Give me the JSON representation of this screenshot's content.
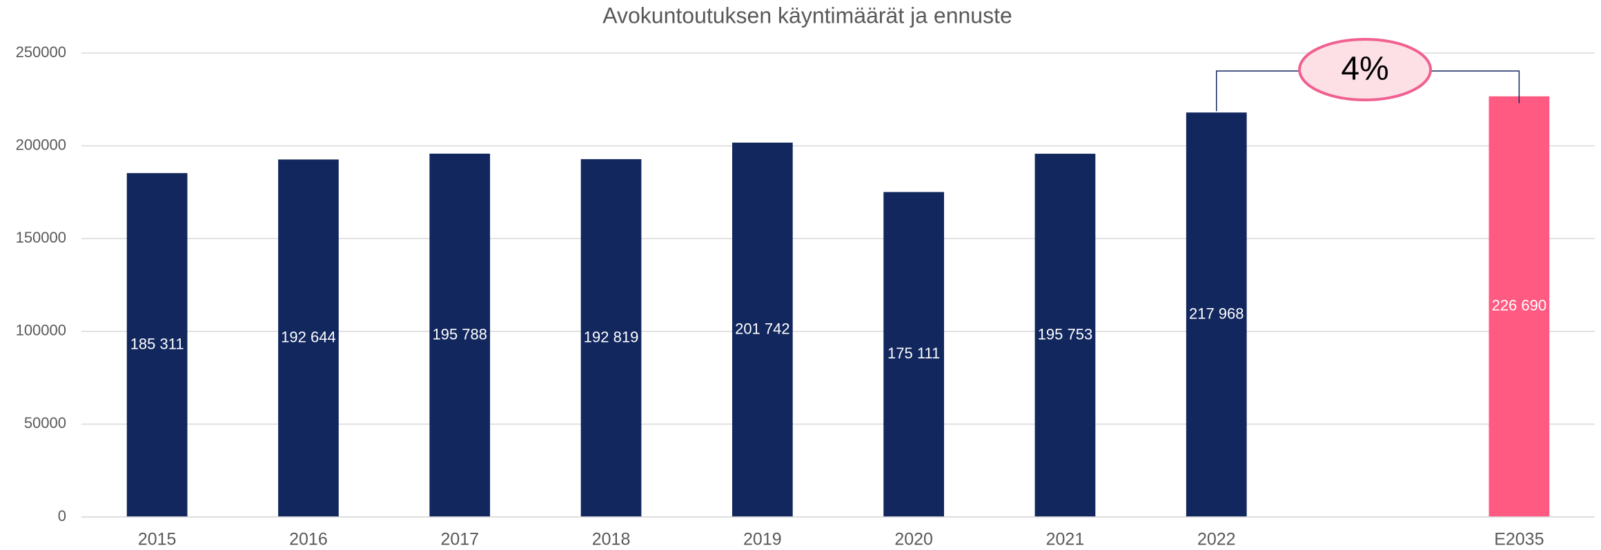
{
  "chart_data": {
    "type": "bar",
    "title": "Avokuntoutuksen käyntimäärät ja ennuste",
    "categories": [
      "2015",
      "2016",
      "2017",
      "2018",
      "2019",
      "2020",
      "2021",
      "2022",
      null,
      "E2035"
    ],
    "values": [
      185311,
      192644,
      195788,
      192819,
      201742,
      175111,
      195753,
      217968,
      null,
      226690
    ],
    "value_labels": [
      "185 311",
      "192 644",
      "195 788",
      "192 819",
      "201 742",
      "175 111",
      "195 753",
      "217 968",
      null,
      "226 690"
    ],
    "colors": [
      "#12275e",
      "#12275e",
      "#12275e",
      "#12275e",
      "#12275e",
      "#12275e",
      "#12275e",
      "#12275e",
      null,
      "#ff5a82"
    ],
    "ylim": [
      0,
      250000
    ],
    "yticks": [
      0,
      50000,
      100000,
      150000,
      200000,
      250000
    ],
    "grid": true,
    "annotations": [
      {
        "text": "4%",
        "from": 7,
        "to": 9
      }
    ]
  }
}
